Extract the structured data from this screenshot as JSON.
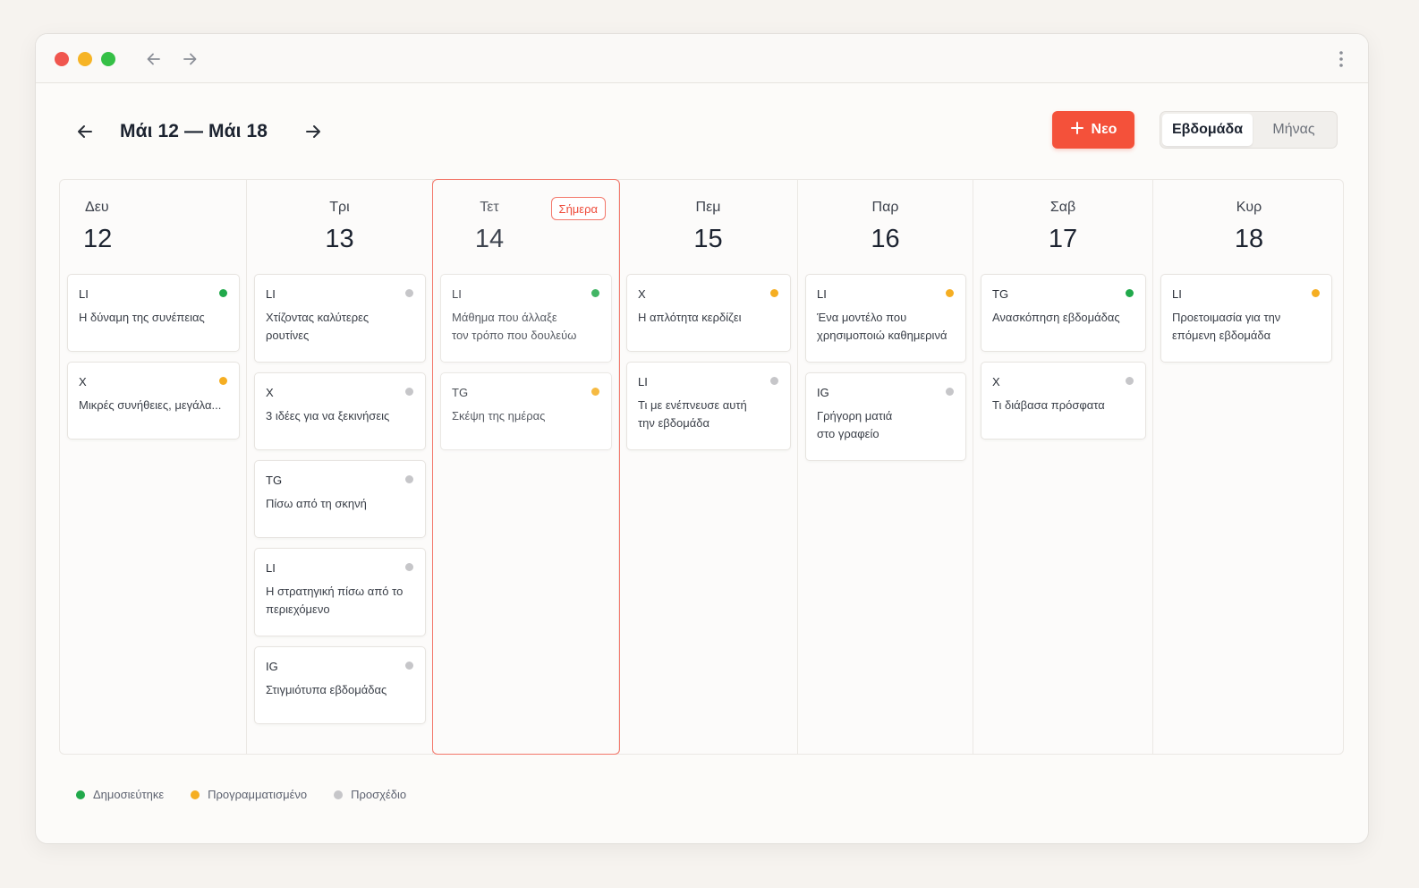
{
  "colors": {
    "published": "#21a94b",
    "scheduled": "#f5ae22",
    "draft": "#c6c6c9",
    "accent": "#f4513a"
  },
  "header": {
    "range": "Μάι 12 — Μάι 18",
    "new_label": "Νεο",
    "view_week": "Εβδομάδα",
    "view_month": "Μήνας"
  },
  "today_label": "Σήμερα",
  "days": [
    {
      "dow": "Δευ",
      "num": "12",
      "cards": [
        {
          "platform": "LI",
          "title": "Η δύναμη της συνέπειας",
          "status": "published"
        },
        {
          "platform": "X",
          "title": "Μικρές συνήθειες, μεγάλα...",
          "status": "scheduled"
        }
      ]
    },
    {
      "dow": "Τρι",
      "num": "13",
      "cards": [
        {
          "platform": "LI",
          "title": "Χτίζοντας καλύτερες\nρουτίνες",
          "status": "draft"
        },
        {
          "platform": "X",
          "title": "3 ιδέες για να ξεκινήσεις",
          "status": "draft"
        },
        {
          "platform": "TG",
          "title": "Πίσω από τη σκηνή",
          "status": "draft"
        },
        {
          "platform": "LI",
          "title": "Η στρατηγική πίσω από το\nπεριεχόμενο",
          "status": "draft"
        },
        {
          "platform": "IG",
          "title": "Στιγμιότυπα εβδομάδας",
          "status": "draft"
        }
      ]
    },
    {
      "dow": "Τετ",
      "num": "14",
      "today": true,
      "cards": [
        {
          "platform": "LI",
          "title": "Μάθημα που άλλαξε\nτον τρόπο που δουλεύω",
          "status": "published"
        },
        {
          "platform": "TG",
          "title": "Σκέψη της ημέρας",
          "status": "scheduled"
        }
      ]
    },
    {
      "dow": "Πεμ",
      "num": "15",
      "cards": [
        {
          "platform": "X",
          "title": "Η απλότητα κερδίζει",
          "status": "scheduled"
        },
        {
          "platform": "LI",
          "title": "Τι με ενέπνευσε αυτή\nτην εβδομάδα",
          "status": "draft"
        }
      ]
    },
    {
      "dow": "Παρ",
      "num": "16",
      "cards": [
        {
          "platform": "LI",
          "title": "Ένα μοντέλο που\nχρησιμοποιώ καθημερινά",
          "status": "scheduled"
        },
        {
          "platform": "IG",
          "title": "Γρήγορη ματιά\nστο γραφείο",
          "status": "draft"
        }
      ]
    },
    {
      "dow": "Σαβ",
      "num": "17",
      "cards": [
        {
          "platform": "TG",
          "title": "Ανασκόπηση εβδομάδας",
          "status": "published"
        },
        {
          "platform": "X",
          "title": "Τι διάβασα πρόσφατα",
          "status": "draft"
        }
      ]
    },
    {
      "dow": "Κυρ",
      "num": "18",
      "cards": [
        {
          "platform": "LI",
          "title": "Προετοιμασία για την\nεπόμενη εβδομάδα",
          "status": "scheduled"
        }
      ]
    }
  ],
  "legend": [
    {
      "label": "Δημοσιεύτηκε",
      "status": "published"
    },
    {
      "label": "Προγραμματισμένο",
      "status": "scheduled"
    },
    {
      "label": "Προσχέδιο",
      "status": "draft"
    }
  ]
}
